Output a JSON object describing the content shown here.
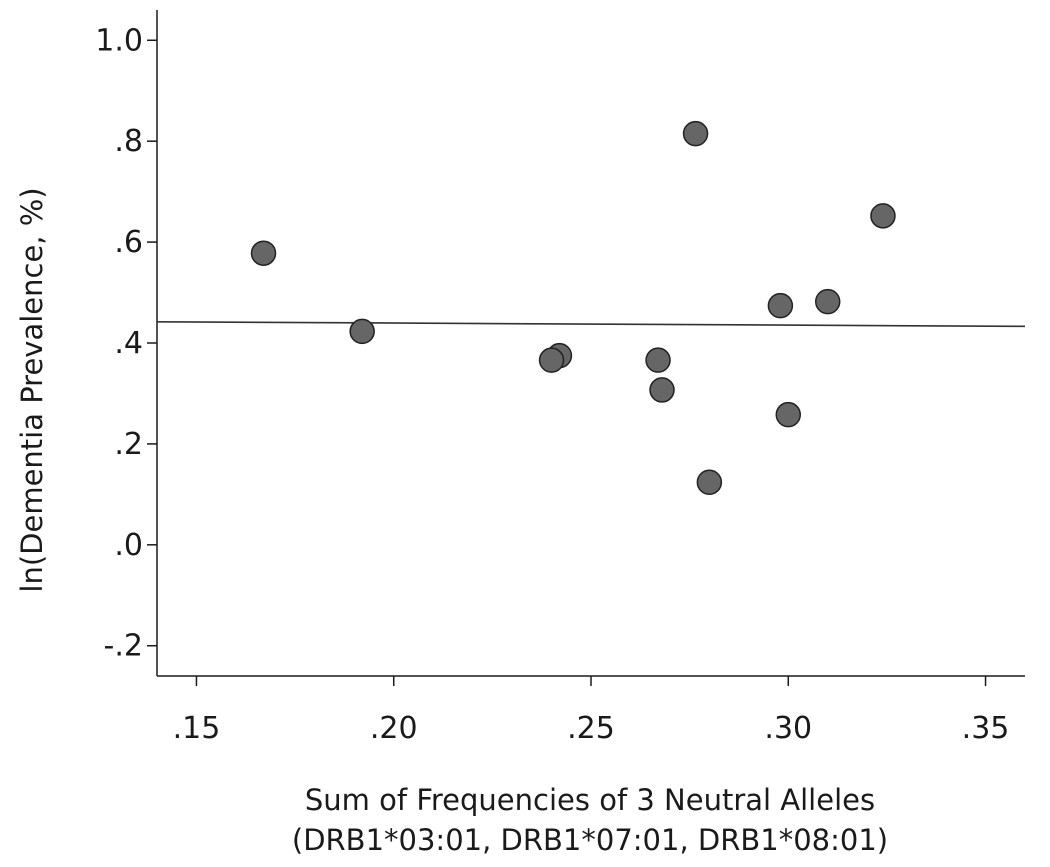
{
  "chart_data": {
    "type": "scatter",
    "xlabel": "Sum of Frequencies of 3 Neutral Alleles",
    "xlabel_line2": "(DRB1*03:01, DRB1*07:01, DRB1*08:01)",
    "ylabel": "ln(Dementia Prevalence, %)",
    "xlim": [
      0.14,
      0.36
    ],
    "ylim": [
      -0.26,
      1.06
    ],
    "x_ticks": [
      {
        "value": 0.15,
        "label": ".15"
      },
      {
        "value": 0.2,
        "label": ".20"
      },
      {
        "value": 0.25,
        "label": ".25"
      },
      {
        "value": 0.3,
        "label": ".30"
      },
      {
        "value": 0.35,
        "label": ".35"
      }
    ],
    "y_ticks": [
      {
        "value": 1.0,
        "label": "1.0"
      },
      {
        "value": 0.8,
        "label": ".8"
      },
      {
        "value": 0.6,
        "label": ".6"
      },
      {
        "value": 0.4,
        "label": ".4"
      },
      {
        "value": 0.2,
        "label": ".2"
      },
      {
        "value": 0.0,
        "label": ".0"
      },
      {
        "value": -0.2,
        "label": "-.2"
      }
    ],
    "grid": false,
    "legend": "none",
    "point_color": "#666666",
    "points": [
      {
        "x": 0.167,
        "y": 0.578
      },
      {
        "x": 0.192,
        "y": 0.423
      },
      {
        "x": 0.242,
        "y": 0.375
      },
      {
        "x": 0.24,
        "y": 0.366
      },
      {
        "x": 0.267,
        "y": 0.366
      },
      {
        "x": 0.268,
        "y": 0.307
      },
      {
        "x": 0.2765,
        "y": 0.815
      },
      {
        "x": 0.28,
        "y": 0.124
      },
      {
        "x": 0.298,
        "y": 0.474
      },
      {
        "x": 0.3,
        "y": 0.258
      },
      {
        "x": 0.31,
        "y": 0.482
      },
      {
        "x": 0.324,
        "y": 0.652
      }
    ],
    "fit_line": {
      "x": [
        0.14,
        0.36
      ],
      "y": [
        0.442,
        0.433
      ]
    }
  }
}
